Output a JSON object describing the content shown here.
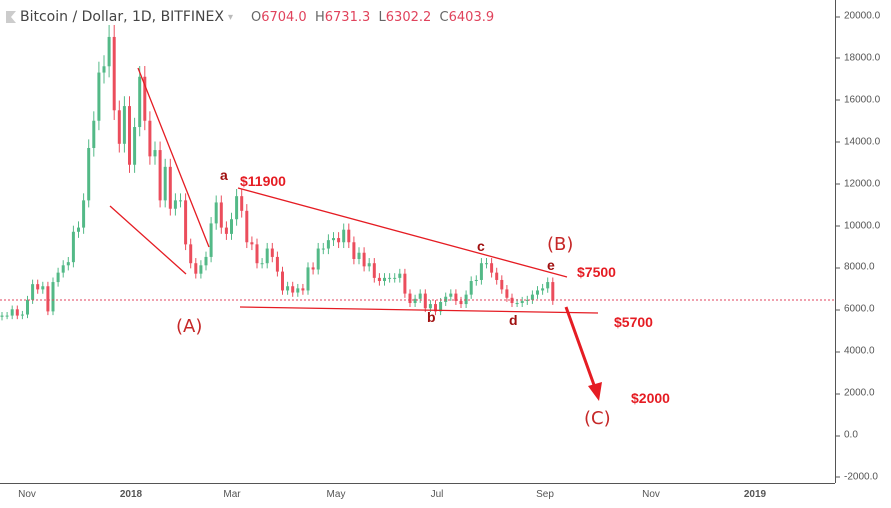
{
  "header": {
    "symbol": "Bitcoin / Dollar, 1D, BITFINEX",
    "o_label": "O",
    "o": "6704.0",
    "h_label": "H",
    "h": "6731.3",
    "l_label": "L",
    "l": "6302.2",
    "c_label": "C",
    "c": "6403.9"
  },
  "colors": {
    "up": "#53b987",
    "down": "#eb4d5c",
    "annotation": "#e51c23",
    "last_price_line": "#e0435c"
  },
  "annotations": {
    "a": "a",
    "a_price": "$11900",
    "A": "(A)",
    "b": "b",
    "c": "c",
    "d": "d",
    "e": "e",
    "B": "(B)",
    "B_price": "$7500",
    "support": "$5700",
    "C": "(C)",
    "target": "$2000"
  },
  "chart_data": {
    "type": "candlestick",
    "title": "Bitcoin / Dollar, 1D, BITFINEX",
    "ylim": [
      -2000,
      20000
    ],
    "y_ticks": [
      "20000.0",
      "18000.0",
      "16000.0",
      "14000.0",
      "12000.0",
      "10000.0",
      "8000.0",
      "6000.0",
      "4000.0",
      "2000.0",
      "0.0",
      "-2000.0"
    ],
    "x_ticks": [
      "Nov",
      "2018",
      "Mar",
      "May",
      "Jul",
      "Sep",
      "Nov",
      "2019"
    ],
    "last_close": 6403.9,
    "start_date": "2017-10-16",
    "step_days": 3,
    "closes": [
      5700,
      5700,
      6000,
      5700,
      5750,
      6450,
      7200,
      6950,
      7100,
      5900,
      7300,
      7750,
      8100,
      8250,
      9700,
      9900,
      11200,
      13700,
      15000,
      17300,
      17600,
      19000,
      15500,
      13900,
      15700,
      12900,
      14700,
      17100,
      15000,
      13300,
      13600,
      11200,
      12800,
      10800,
      11200,
      11200,
      9100,
      8200,
      7700,
      8100,
      8500,
      10100,
      11100,
      9900,
      9600,
      10300,
      11400,
      10700,
      9200,
      9100,
      8200,
      8200,
      8900,
      8500,
      7800,
      6900,
      7100,
      6800,
      7000,
      6900,
      8000,
      7900,
      8900,
      8900,
      9300,
      9400,
      9200,
      9800,
      9200,
      8400,
      8700,
      8050,
      8200,
      7500,
      7350,
      7500,
      7500,
      7500,
      7700,
      6750,
      6300,
      6500,
      6750,
      6050,
      6250,
      5900,
      6350,
      6600,
      6750,
      6400,
      6250,
      6700,
      7350,
      7400,
      8200,
      8200,
      7750,
      7400,
      6950,
      6550,
      6300,
      6300,
      6400,
      6450,
      6700,
      6900,
      7000,
      7300,
      6404
    ]
  }
}
